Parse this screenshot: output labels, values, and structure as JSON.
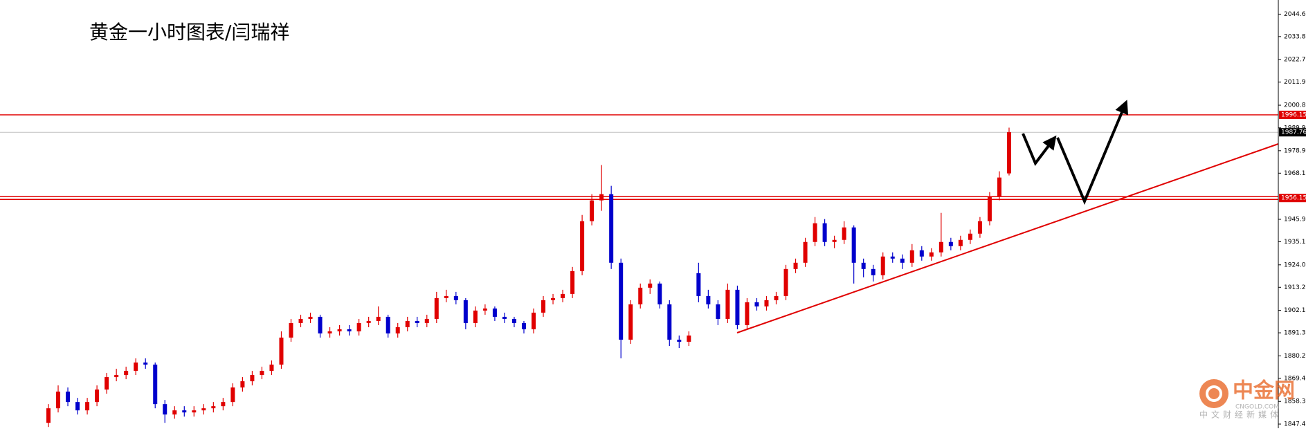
{
  "chart_data": {
    "type": "candlestick",
    "title": "黄金一小时图表/闫瑞祥",
    "watermark": {
      "brand": "中金网",
      "site": "CNGOLD.COM",
      "slogan": "中文财经新媒体"
    },
    "up_color": "#e00000",
    "down_color": "#0000cc",
    "ylim": [
      1845.4,
      2051.4
    ],
    "yticks": [
      {
        "value": 2044.6,
        "label": "2044.60"
      },
      {
        "value": 2033.8,
        "label": "2033.80"
      },
      {
        "value": 2022.7,
        "label": "2022.70"
      },
      {
        "value": 2011.9,
        "label": "2011.90"
      },
      {
        "value": 2000.8,
        "label": "2000.80"
      },
      {
        "value": 1989.9,
        "label": "1989.90"
      },
      {
        "value": 1978.9,
        "label": "1978.90"
      },
      {
        "value": 1968.1,
        "label": "1968.10"
      },
      {
        "value": 1945.9,
        "label": "1945.90"
      },
      {
        "value": 1935.1,
        "label": "1935.10"
      },
      {
        "value": 1924.0,
        "label": "1924.00"
      },
      {
        "value": 1913.2,
        "label": "1913.20"
      },
      {
        "value": 1902.1,
        "label": "1902.10"
      },
      {
        "value": 1891.3,
        "label": "1891.30"
      },
      {
        "value": 1880.2,
        "label": "1880.20"
      },
      {
        "value": 1869.4,
        "label": "1869.40"
      },
      {
        "value": 1858.3,
        "label": "1858.30"
      },
      {
        "value": 1847.4,
        "label": "1847.40"
      }
    ],
    "levels": [
      {
        "value": 1996.15,
        "color": "#e00000",
        "style": "single"
      },
      {
        "value": 1987.76,
        "color": "#000000",
        "style": "current"
      },
      {
        "value": 1956.15,
        "color": "#e00000",
        "style": "double"
      }
    ],
    "candles": [
      [
        1848,
        1857,
        1846,
        1855
      ],
      [
        1855,
        1866,
        1853,
        1863
      ],
      [
        1863,
        1865,
        1856,
        1858
      ],
      [
        1858,
        1860,
        1852,
        1854
      ],
      [
        1854,
        1860,
        1852,
        1858
      ],
      [
        1858,
        1866,
        1856,
        1864
      ],
      [
        1864,
        1872,
        1862,
        1870
      ],
      [
        1870,
        1874,
        1868,
        1871
      ],
      [
        1871,
        1875,
        1869,
        1873
      ],
      [
        1873,
        1879,
        1871,
        1877
      ],
      [
        1877,
        1879,
        1874,
        1876
      ],
      [
        1876,
        1877,
        1855,
        1857
      ],
      [
        1857,
        1859,
        1848,
        1852
      ],
      [
        1852,
        1856,
        1850,
        1854
      ],
      [
        1854,
        1856,
        1851,
        1853
      ],
      [
        1853,
        1856,
        1851,
        1854
      ],
      [
        1854,
        1857,
        1852,
        1855
      ],
      [
        1855,
        1858,
        1853,
        1856
      ],
      [
        1856,
        1860,
        1854,
        1858
      ],
      [
        1858,
        1867,
        1856,
        1865
      ],
      [
        1865,
        1870,
        1863,
        1868
      ],
      [
        1868,
        1873,
        1866,
        1871
      ],
      [
        1871,
        1875,
        1869,
        1873
      ],
      [
        1873,
        1878,
        1871,
        1876
      ],
      [
        1876,
        1892,
        1874,
        1889
      ],
      [
        1889,
        1898,
        1887,
        1896
      ],
      [
        1896,
        1900,
        1894,
        1898
      ],
      [
        1898,
        1901,
        1896,
        1899
      ],
      [
        1899,
        1900,
        1889,
        1891
      ],
      [
        1891,
        1894,
        1889,
        1892
      ],
      [
        1892,
        1895,
        1890,
        1893
      ],
      [
        1893,
        1895,
        1890,
        1892
      ],
      [
        1892,
        1898,
        1890,
        1896
      ],
      [
        1896,
        1899,
        1894,
        1897
      ],
      [
        1897,
        1904,
        1895,
        1899
      ],
      [
        1899,
        1900,
        1889,
        1891
      ],
      [
        1891,
        1896,
        1889,
        1894
      ],
      [
        1894,
        1899,
        1892,
        1897
      ],
      [
        1897,
        1899,
        1894,
        1896
      ],
      [
        1896,
        1900,
        1894,
        1898
      ],
      [
        1898,
        1911,
        1896,
        1908
      ],
      [
        1908,
        1912,
        1906,
        1909
      ],
      [
        1909,
        1911,
        1905,
        1907
      ],
      [
        1907,
        1908,
        1893,
        1896
      ],
      [
        1896,
        1904,
        1894,
        1902
      ],
      [
        1902,
        1905,
        1900,
        1903
      ],
      [
        1903,
        1904,
        1897,
        1899
      ],
      [
        1899,
        1901,
        1896,
        1898
      ],
      [
        1898,
        1899,
        1894,
        1896
      ],
      [
        1896,
        1897,
        1891,
        1893
      ],
      [
        1893,
        1903,
        1891,
        1901
      ],
      [
        1901,
        1909,
        1899,
        1907
      ],
      [
        1907,
        1910,
        1905,
        1908
      ],
      [
        1908,
        1912,
        1906,
        1910
      ],
      [
        1910,
        1923,
        1908,
        1921
      ],
      [
        1921,
        1948,
        1919,
        1945
      ],
      [
        1945,
        1958,
        1943,
        1955
      ],
      [
        1955,
        1972,
        1950,
        1958
      ],
      [
        1958,
        1962,
        1922,
        1925
      ],
      [
        1925,
        1927,
        1879,
        1888
      ],
      [
        1888,
        1907,
        1886,
        1905
      ],
      [
        1905,
        1915,
        1903,
        1913
      ],
      [
        1913,
        1917,
        1910,
        1915
      ],
      [
        1915,
        1916,
        1903,
        1905
      ],
      [
        1905,
        1907,
        1885,
        1888
      ],
      [
        1888,
        1890,
        1884,
        1887
      ],
      [
        1887,
        1892,
        1885,
        1890
      ],
      [
        1920,
        1925,
        1906,
        1909
      ],
      [
        1909,
        1912,
        1903,
        1905
      ],
      [
        1905,
        1907,
        1895,
        1898
      ],
      [
        1898,
        1915,
        1896,
        1912
      ],
      [
        1912,
        1914,
        1893,
        1895
      ],
      [
        1895,
        1908,
        1893,
        1906
      ],
      [
        1906,
        1908,
        1902,
        1904
      ],
      [
        1904,
        1909,
        1902,
        1907
      ],
      [
        1907,
        1911,
        1905,
        1909
      ],
      [
        1909,
        1924,
        1907,
        1922
      ],
      [
        1922,
        1927,
        1920,
        1925
      ],
      [
        1925,
        1937,
        1923,
        1935
      ],
      [
        1935,
        1947,
        1933,
        1944
      ],
      [
        1944,
        1946,
        1933,
        1935
      ],
      [
        1935,
        1938,
        1932,
        1936
      ],
      [
        1936,
        1945,
        1934,
        1942
      ],
      [
        1942,
        1943,
        1915,
        1925
      ],
      [
        1925,
        1927,
        1918,
        1922
      ],
      [
        1922,
        1924,
        1916,
        1919
      ],
      [
        1919,
        1930,
        1917,
        1928
      ],
      [
        1928,
        1930,
        1925,
        1927
      ],
      [
        1927,
        1929,
        1922,
        1925
      ],
      [
        1925,
        1934,
        1923,
        1931
      ],
      [
        1931,
        1933,
        1926,
        1928
      ],
      [
        1928,
        1932,
        1926,
        1930
      ],
      [
        1930,
        1949,
        1928,
        1935
      ],
      [
        1935,
        1937,
        1931,
        1933
      ],
      [
        1933,
        1938,
        1931,
        1936
      ],
      [
        1936,
        1941,
        1934,
        1939
      ],
      [
        1939,
        1947,
        1937,
        1945
      ],
      [
        1945,
        1959,
        1943,
        1957
      ],
      [
        1957,
        1969,
        1955,
        1966
      ],
      [
        1968,
        1990,
        1967,
        1987.8
      ]
    ]
  }
}
